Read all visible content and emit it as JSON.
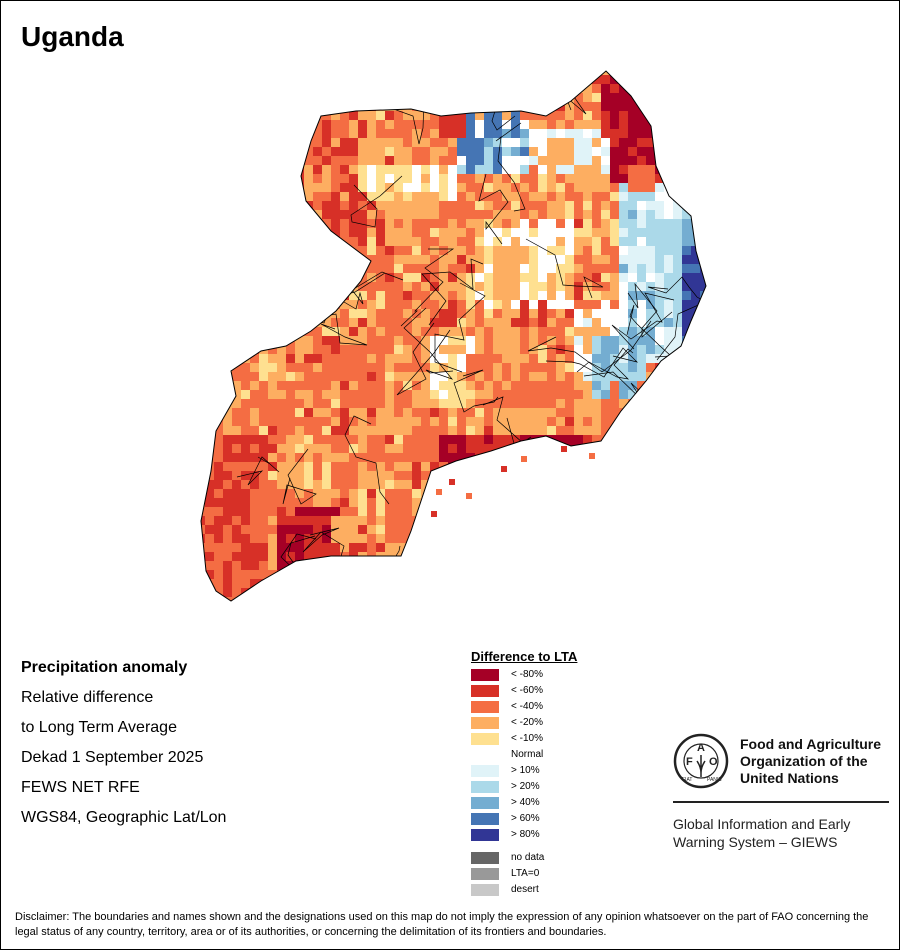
{
  "title": "Uganda",
  "info": {
    "heading": "Precipitation anomaly",
    "line1": "Relative difference",
    "line2": "to Long Term Average",
    "period": "Dekad 1 September 2025",
    "source": "FEWS NET RFE",
    "projection": "WGS84, Geographic Lat/Lon"
  },
  "legend": {
    "title": "Difference to LTA",
    "items": [
      {
        "label": "< -80%",
        "color": "#a50026"
      },
      {
        "label": "< -60%",
        "color": "#d73027"
      },
      {
        "label": "< -40%",
        "color": "#f46d43"
      },
      {
        "label": "< -20%",
        "color": "#fdae61"
      },
      {
        "label": "< -10%",
        "color": "#fee090"
      },
      {
        "label": "Normal",
        "color": "#ffffff"
      },
      {
        "label": "> 10%",
        "color": "#e0f3f8"
      },
      {
        "label": "> 20%",
        "color": "#abd9e9"
      },
      {
        "label": "> 40%",
        "color": "#74add1"
      },
      {
        "label": "> 60%",
        "color": "#4575b4"
      },
      {
        "label": "> 80%",
        "color": "#313695"
      }
    ],
    "extra": [
      {
        "label": "no data",
        "color": "#666666"
      },
      {
        "label": "LTA=0",
        "color": "#999999"
      },
      {
        "label": "desert",
        "color": "#c8c8c8"
      }
    ]
  },
  "fao": {
    "name_line1": "Food and Agriculture",
    "name_line2": "Organization of the",
    "name_line3": "United Nations",
    "system_line1": "Global Information and Early",
    "system_line2": "Warning System – GIEWS",
    "logo_text": "FAO FIAT PANIS"
  },
  "disclaimer": "Disclaimer: The boundaries and names shown and the designations used on this map do not imply the expression of any opinion whatsoever on the part of FAO concerning the legal status of any country, territory, area or of its authorities, or concerning the delimitation of its frontiers and boundaries."
}
